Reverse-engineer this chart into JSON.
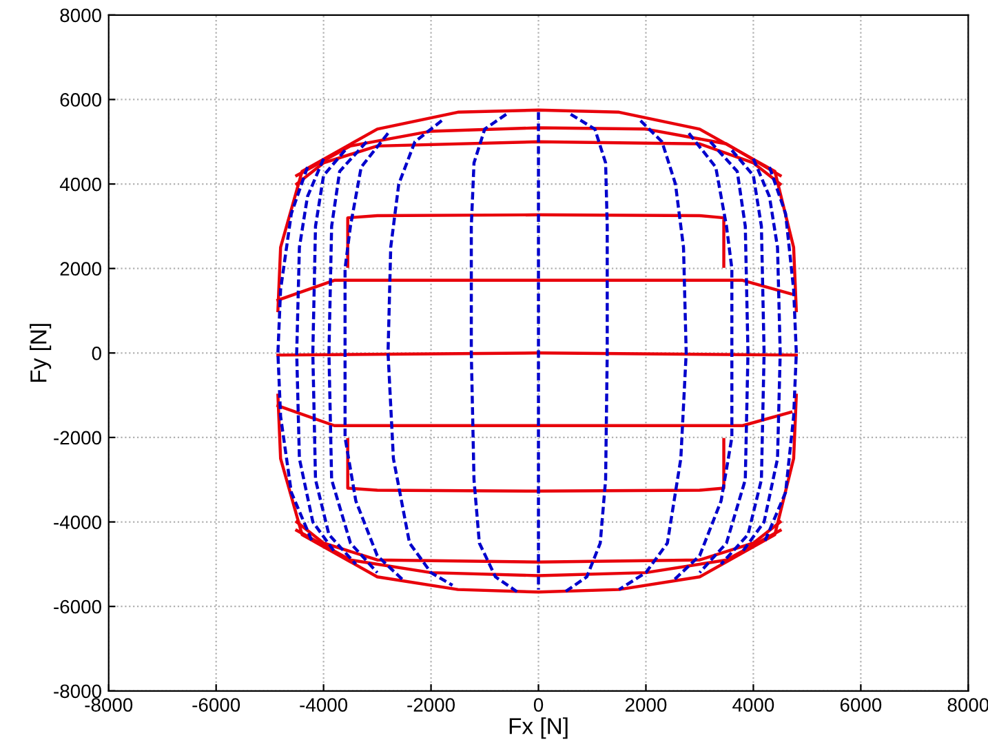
{
  "chart_data": {
    "type": "line",
    "xlabel": "Fx [N]",
    "ylabel": "Fy [N]",
    "xlim": [
      -8000,
      8000
    ],
    "ylim": [
      -8000,
      8000
    ],
    "xticks": [
      -8000,
      -6000,
      -4000,
      -2000,
      0,
      2000,
      4000,
      6000,
      8000
    ],
    "yticks": [
      -8000,
      -6000,
      -4000,
      -2000,
      0,
      2000,
      4000,
      6000,
      8000
    ],
    "grid": true,
    "legend": false,
    "series": [
      {
        "color": "#0000cc",
        "line_style": "dashed",
        "x": [
          0,
          0
        ],
        "values": [
          5700,
          -5600
        ]
      },
      {
        "color": "#0000cc",
        "line_style": "dashed",
        "x": [
          -600,
          -1000,
          -1200,
          -1250,
          -1250,
          -1200,
          -1100,
          -800,
          -400
        ],
        "values": [
          5650,
          5300,
          4500,
          3000,
          0,
          -3000,
          -4500,
          -5300,
          -5650
        ]
      },
      {
        "color": "#0000cc",
        "line_style": "dashed",
        "x": [
          600,
          1050,
          1250,
          1280,
          1280,
          1250,
          1150,
          900,
          500
        ],
        "values": [
          5650,
          5300,
          4500,
          3000,
          0,
          -3000,
          -4500,
          -5300,
          -5650
        ]
      },
      {
        "color": "#0000cc",
        "line_style": "dashed",
        "x": [
          -1800,
          -2300,
          -2600,
          -2750,
          -2800,
          -2700,
          -2400,
          -2000,
          -1600
        ],
        "values": [
          5500,
          5000,
          4000,
          2500,
          0,
          -2500,
          -4500,
          -5200,
          -5500
        ]
      },
      {
        "color": "#0000cc",
        "line_style": "dashed",
        "x": [
          1900,
          2300,
          2550,
          2700,
          2750,
          2650,
          2400,
          2000,
          1500
        ],
        "values": [
          5500,
          5000,
          4000,
          2500,
          0,
          -2500,
          -4500,
          -5200,
          -5600
        ]
      },
      {
        "color": "#0000cc",
        "line_style": "dashed",
        "x": [
          -2800,
          -3300,
          -3500,
          -3600,
          -3600,
          -3600,
          -3400,
          -3000,
          -2500
        ],
        "values": [
          5200,
          4400,
          3000,
          2000,
          0,
          -2000,
          -3500,
          -4800,
          -5400
        ]
      },
      {
        "color": "#0000cc",
        "line_style": "dashed",
        "x": [
          -3200,
          -3700,
          -3850,
          -3900,
          -3850,
          -3500,
          -3000
        ],
        "values": [
          5000,
          4300,
          3000,
          0,
          -3000,
          -4500,
          -5200
        ]
      },
      {
        "color": "#0000cc",
        "line_style": "dashed",
        "x": [
          -3600,
          -4000,
          -4150,
          -4200,
          -4150,
          -3900,
          -3400
        ],
        "values": [
          4800,
          4200,
          3000,
          0,
          -3000,
          -4300,
          -5000
        ]
      },
      {
        "color": "#0000cc",
        "line_style": "dashed",
        "x": [
          -4000,
          -4300,
          -4450,
          -4500,
          -4450,
          -4200,
          -3800
        ],
        "values": [
          4600,
          3700,
          2500,
          0,
          -2500,
          -4000,
          -4700
        ]
      },
      {
        "color": "#0000cc",
        "line_style": "dashed",
        "x": [
          -4300,
          -4600,
          -4800,
          -4850,
          -4800,
          -4600,
          -4200
        ],
        "values": [
          4400,
          3300,
          1500,
          0,
          -1500,
          -3300,
          -4500
        ]
      },
      {
        "color": "#0000cc",
        "line_style": "dashed",
        "x": [
          2800,
          3300,
          3500,
          3600,
          3600,
          3600,
          3400,
          3000,
          2500
        ],
        "values": [
          5200,
          4400,
          3000,
          2000,
          0,
          -2000,
          -3500,
          -4800,
          -5400
        ]
      },
      {
        "color": "#0000cc",
        "line_style": "dashed",
        "x": [
          3200,
          3700,
          3850,
          3900,
          3850,
          3500,
          3000
        ],
        "values": [
          5000,
          4300,
          3000,
          0,
          -3000,
          -4500,
          -5200
        ]
      },
      {
        "color": "#0000cc",
        "line_style": "dashed",
        "x": [
          3600,
          4000,
          4150,
          4200,
          4150,
          3900,
          3400
        ],
        "values": [
          4800,
          4200,
          3000,
          0,
          -3000,
          -4300,
          -5000
        ]
      },
      {
        "color": "#0000cc",
        "line_style": "dashed",
        "x": [
          4000,
          4300,
          4450,
          4500,
          4450,
          4200,
          3800
        ],
        "values": [
          4600,
          3700,
          2500,
          0,
          -2500,
          -4000,
          -4700
        ]
      },
      {
        "color": "#0000cc",
        "line_style": "dashed",
        "x": [
          4300,
          4600,
          4750,
          4800,
          4750,
          4600,
          4200
        ],
        "values": [
          4400,
          3300,
          1500,
          0,
          -1500,
          -3300,
          -4500
        ]
      },
      {
        "color": "#e8000b",
        "line_style": "solid",
        "x": [
          -4850,
          0,
          4800
        ],
        "values": [
          -50,
          0,
          -50
        ]
      },
      {
        "color": "#e8000b",
        "line_style": "solid",
        "x": [
          -4850,
          -3800,
          0,
          3800,
          4700
        ],
        "values": [
          1250,
          1720,
          1720,
          1720,
          1400
        ]
      },
      {
        "color": "#e8000b",
        "line_style": "solid",
        "x": [
          -4850,
          -3800,
          0,
          3800,
          4700
        ],
        "values": [
          -1250,
          -1720,
          -1720,
          -1720,
          -1400
        ]
      },
      {
        "color": "#e8000b",
        "line_style": "solid",
        "x": [
          -3550,
          -3550,
          -3000,
          0,
          3000,
          3450,
          3450
        ],
        "values": [
          2050,
          3200,
          3250,
          3270,
          3250,
          3200,
          2050
        ]
      },
      {
        "color": "#e8000b",
        "line_style": "solid",
        "x": [
          -3550,
          -3550,
          -3000,
          0,
          3000,
          3450,
          3450
        ],
        "values": [
          -2050,
          -3200,
          -3250,
          -3270,
          -3250,
          -3200,
          -2050
        ]
      },
      {
        "color": "#e8000b",
        "line_style": "solid",
        "x": [
          -4500,
          -4000,
          -3000,
          0,
          3000,
          4000,
          4500
        ],
        "values": [
          4000,
          4500,
          4900,
          5000,
          4950,
          4500,
          4000
        ]
      },
      {
        "color": "#e8000b",
        "line_style": "solid",
        "x": [
          -4500,
          -4000,
          -3000,
          0,
          3000,
          4000,
          4500
        ],
        "values": [
          -4000,
          -4500,
          -4900,
          -4950,
          -4900,
          -4500,
          -4000
        ]
      },
      {
        "color": "#e8000b",
        "line_style": "solid",
        "x": [
          -4500,
          -3500,
          -2000,
          0,
          2000,
          3500,
          4500
        ],
        "values": [
          4200,
          4900,
          5250,
          5330,
          5300,
          4950,
          4200
        ]
      },
      {
        "color": "#e8000b",
        "line_style": "solid",
        "x": [
          -4500,
          -3500,
          -2000,
          0,
          2000,
          3500,
          4500
        ],
        "values": [
          -4200,
          -4900,
          -5200,
          -5270,
          -5200,
          -4900,
          -4200
        ]
      },
      {
        "color": "#e8000b",
        "line_style": "solid",
        "x": [
          -4850,
          -4800,
          -4400,
          -3000,
          -1500,
          0,
          1500,
          3000,
          4400,
          4750,
          4800
        ],
        "values": [
          1000,
          2500,
          4300,
          5300,
          5700,
          5750,
          5700,
          5300,
          4300,
          2500,
          1000
        ]
      },
      {
        "color": "#e8000b",
        "line_style": "solid",
        "x": [
          -4850,
          -4800,
          -4400,
          -3000,
          -1500,
          0,
          1500,
          3000,
          4400,
          4750,
          4800
        ],
        "values": [
          -1000,
          -2500,
          -4300,
          -5300,
          -5600,
          -5660,
          -5600,
          -5300,
          -4300,
          -2500,
          -1000
        ]
      }
    ]
  }
}
